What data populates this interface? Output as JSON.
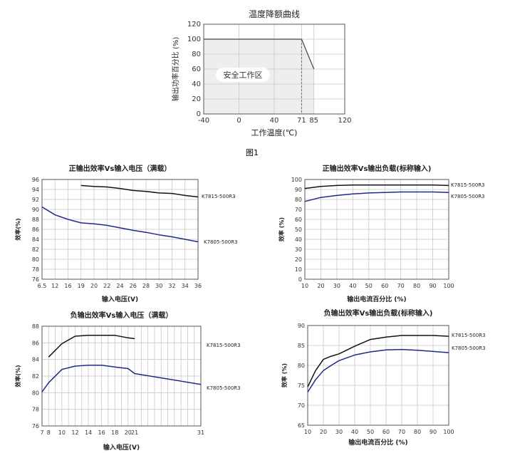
{
  "chart_data": [
    {
      "id": "derating",
      "type": "area",
      "title": "温度降额曲线",
      "xlabel": "工作温度(℃)",
      "ylabel": "输出功率百分比 (%)",
      "x_ticks": [
        -40,
        0,
        40,
        71,
        85,
        120
      ],
      "y_ticks": [
        0,
        20,
        40,
        60,
        80,
        100,
        120
      ],
      "xlim": [
        -40,
        120
      ],
      "ylim": [
        0,
        120
      ],
      "grid": true,
      "series": [
        {
          "x": [
            -40,
            71,
            85
          ],
          "y": [
            100,
            100,
            60
          ]
        }
      ],
      "annotation": "安全工作区",
      "marker_x": 71
    },
    {
      "id": "pos-vin",
      "type": "line",
      "title": "正输出效率Vs输入电压（满载）",
      "xlabel": "输入电压(V)",
      "ylabel": "效率(%)",
      "x_ticks": [
        6.5,
        12,
        16,
        19,
        20,
        22,
        24,
        26,
        28,
        30,
        32,
        34,
        36
      ],
      "y_ticks": [
        76,
        78,
        80,
        82,
        84,
        86,
        88,
        90,
        92,
        94,
        96
      ],
      "ylim": [
        76,
        96
      ],
      "grid": true,
      "series": [
        {
          "name": "K7815-500R3",
          "color": "#111111",
          "x": [
            19,
            20,
            22,
            24,
            26,
            28,
            30,
            32,
            34,
            36
          ],
          "y": [
            94.8,
            94.6,
            94.5,
            94.2,
            93.8,
            93.6,
            93.3,
            93.2,
            92.8,
            92.5
          ]
        },
        {
          "name": "K7805-500R3",
          "color": "#1f2a8a",
          "x": [
            6.5,
            12,
            16,
            19,
            20,
            22,
            24,
            26,
            28,
            30,
            32,
            34,
            36
          ],
          "y": [
            90.5,
            88.9,
            88.0,
            87.3,
            87.1,
            86.8,
            86.3,
            85.8,
            85.4,
            84.9,
            84.5,
            84.0,
            83.5
          ]
        }
      ]
    },
    {
      "id": "pos-load",
      "type": "line",
      "title": "正输出效率Vs输出负载(标称输入)",
      "xlabel": "输出电流百分比 (%)",
      "ylabel": "效率 (%)",
      "x_ticks": [
        10,
        20,
        30,
        40,
        50,
        60,
        70,
        80,
        90,
        100
      ],
      "y_ticks": [
        0,
        10,
        20,
        30,
        40,
        50,
        60,
        70,
        80,
        90,
        100
      ],
      "xlim": [
        10,
        100
      ],
      "ylim": [
        0,
        100
      ],
      "grid": true,
      "series": [
        {
          "name": "K7815-500R3",
          "color": "#111111",
          "x": [
            10,
            20,
            30,
            40,
            50,
            60,
            70,
            80,
            90,
            100
          ],
          "y": [
            91,
            93,
            94,
            94.5,
            94.5,
            94.5,
            94.5,
            94.5,
            94.5,
            94
          ]
        },
        {
          "name": "K7805-500R3",
          "color": "#1f2a8a",
          "x": [
            10,
            20,
            30,
            40,
            50,
            60,
            70,
            80,
            90,
            100
          ],
          "y": [
            78,
            82,
            84,
            85.5,
            86.5,
            87,
            87.5,
            87.5,
            87.5,
            87
          ]
        }
      ]
    },
    {
      "id": "neg-vin",
      "type": "line",
      "title": "负输出效率Vs输入电压（满载）",
      "xlabel": "输入电压(V)",
      "ylabel": "效率(%)",
      "x_ticks": [
        7,
        8,
        9,
        10,
        11,
        12,
        13,
        14,
        15,
        16,
        17,
        18,
        19,
        20,
        21,
        22,
        23,
        24,
        25,
        26,
        27,
        28,
        29,
        30,
        31
      ],
      "x_ticks_labelled": [
        7,
        8,
        10,
        12,
        14,
        16,
        18,
        20,
        21,
        31
      ],
      "y_ticks": [
        76,
        78,
        80,
        82,
        84,
        86,
        88
      ],
      "xlim": [
        7,
        31
      ],
      "ylim": [
        76,
        88
      ],
      "grid": true,
      "series": [
        {
          "name": "K7815-500R3",
          "color": "#111111",
          "x": [
            8,
            10,
            12,
            14,
            16,
            18,
            20,
            21
          ],
          "y": [
            84.3,
            85.9,
            86.8,
            86.9,
            86.9,
            86.9,
            86.6,
            86.5
          ]
        },
        {
          "name": "K7805-500R3",
          "color": "#1f2a8a",
          "x": [
            7,
            8,
            10,
            12,
            14,
            16,
            18,
            20,
            21,
            31
          ],
          "y": [
            80.1,
            81.2,
            82.8,
            83.2,
            83.3,
            83.3,
            83.1,
            82.9,
            82.3,
            81.0
          ]
        }
      ]
    },
    {
      "id": "neg-load",
      "type": "line",
      "title": "负输出效率Vs输出负载(标称输入)",
      "xlabel": "输出电流百分比 (%)",
      "ylabel": "效率 (%)",
      "x_ticks": [
        10,
        20,
        30,
        40,
        50,
        60,
        70,
        80,
        90,
        100
      ],
      "y_ticks": [
        65,
        70,
        75,
        80,
        85,
        90
      ],
      "xlim": [
        10,
        100
      ],
      "ylim": [
        65,
        90
      ],
      "grid": true,
      "series": [
        {
          "name": "K7815-500R3",
          "color": "#111111",
          "x": [
            10,
            15,
            20,
            25,
            30,
            40,
            50,
            60,
            70,
            80,
            90,
            100
          ],
          "y": [
            74.6,
            78.7,
            81.5,
            82.3,
            82.9,
            84.8,
            86.5,
            87.1,
            87.5,
            87.5,
            87.5,
            87.3
          ]
        },
        {
          "name": "K7805-500R3",
          "color": "#1f2a8a",
          "x": [
            10,
            15,
            20,
            25,
            30,
            40,
            50,
            60,
            70,
            80,
            90,
            100
          ],
          "y": [
            73.3,
            76.4,
            78.7,
            80.0,
            81.2,
            82.6,
            83.4,
            83.9,
            84.0,
            83.8,
            83.5,
            83.2
          ]
        }
      ]
    }
  ],
  "figure_caption": "图1"
}
